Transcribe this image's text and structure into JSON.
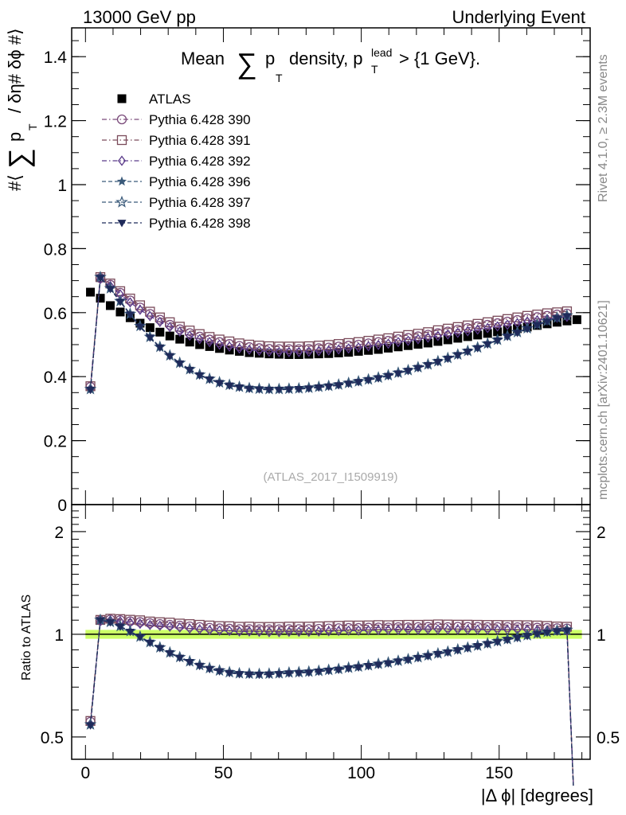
{
  "header": {
    "left": "13000 GeV pp",
    "right": "Underlying Event"
  },
  "side_labels": {
    "rivet": "Rivet 4.1.0, ≥ 2.3M events",
    "mcplots": "mcplots.cern.ch [arXiv:2401.10621]"
  },
  "watermark": "(ATLAS_2017_I1509919)",
  "chart_data": [
    {
      "type": "scatter",
      "panel": "main",
      "title": "Mean ∑ p_T density, p_T^lead > {1 GeV}.",
      "title_parts": {
        "prefix": "Mean",
        "sum": "∑",
        "p": "p",
        "sub_T": "T",
        "mid": "density, p",
        "sup_lead": "lead",
        "suffix": "> {1 GeV}."
      },
      "ylabel": "#⟨ ∑ p_T / δη# δϕ #⟩",
      "ylabel_parts": {
        "open": "#⟨",
        "sum": "∑",
        "p": "p",
        "sub_T": "T",
        "rest": "/ δη# δϕ #⟩"
      },
      "xlim": [
        -5,
        183
      ],
      "ylim": [
        0,
        1.49
      ],
      "yticks": [
        0,
        0.2,
        0.4,
        0.6,
        0.8,
        1,
        1.2,
        1.4
      ],
      "ytick_labels": [
        "0",
        "0.2",
        "0.4",
        "0.6",
        "0.8",
        "1",
        "1.2",
        "1.4"
      ],
      "legend": [
        {
          "label": "ATLAS",
          "marker": "square-filled",
          "color": "#000000",
          "line": "none"
        },
        {
          "label": "Pythia 6.428 390",
          "marker": "circle-open",
          "color": "#7a4a7a",
          "line": "dashdot"
        },
        {
          "label": "Pythia 6.428 391",
          "marker": "square-open",
          "color": "#7a4a5a",
          "line": "dashdot"
        },
        {
          "label": "Pythia 6.428 392",
          "marker": "diamond-open",
          "color": "#5a3a8a",
          "line": "dashdot"
        },
        {
          "label": "Pythia 6.428 396",
          "marker": "star-filled",
          "color": "#3a5a7a",
          "line": "dashed"
        },
        {
          "label": "Pythia 6.428 397",
          "marker": "star-open",
          "color": "#3a5a7a",
          "line": "dashed"
        },
        {
          "label": "Pythia 6.428 398",
          "marker": "triangle-down-filled",
          "color": "#1f2a5a",
          "line": "dashed"
        }
      ],
      "legend_position": "top-left",
      "x": [
        1.8,
        5.4,
        9,
        12.6,
        16.2,
        19.8,
        23.4,
        27,
        30.6,
        34.2,
        37.8,
        41.4,
        45,
        48.6,
        52.2,
        55.8,
        59.4,
        63,
        66.6,
        70.2,
        73.8,
        77.4,
        81,
        84.6,
        88.2,
        91.8,
        95.4,
        99,
        102.6,
        106.2,
        109.8,
        113.4,
        117,
        120.6,
        124.2,
        127.8,
        131.4,
        135,
        138.6,
        142.2,
        145.8,
        149.4,
        153,
        156.6,
        160.2,
        163.8,
        167.4,
        171,
        174.6,
        178.2
      ],
      "series": [
        {
          "name": "ATLAS",
          "values": [
            0.664,
            0.645,
            0.622,
            0.602,
            0.584,
            0.567,
            0.553,
            0.539,
            0.527,
            0.517,
            0.508,
            0.5,
            0.494,
            0.488,
            0.483,
            0.479,
            0.475,
            0.473,
            0.471,
            0.47,
            0.469,
            0.469,
            0.47,
            0.471,
            0.472,
            0.474,
            0.476,
            0.479,
            0.482,
            0.485,
            0.489,
            0.493,
            0.497,
            0.501,
            0.505,
            0.51,
            0.515,
            0.52,
            0.525,
            0.53,
            0.535,
            0.54,
            0.545,
            0.55,
            0.555,
            0.56,
            0.565,
            0.57,
            0.574,
            0.578
          ]
        },
        {
          "name": "Pythia 6.428 390",
          "values": [
            0.368,
            0.708,
            0.687,
            0.662,
            0.638,
            0.616,
            0.596,
            0.578,
            0.562,
            0.548,
            0.536,
            0.525,
            0.516,
            0.508,
            0.502,
            0.496,
            0.492,
            0.489,
            0.487,
            0.486,
            0.486,
            0.486,
            0.487,
            0.489,
            0.491,
            0.494,
            0.497,
            0.5,
            0.504,
            0.508,
            0.512,
            0.517,
            0.521,
            0.526,
            0.531,
            0.536,
            0.541,
            0.547,
            0.552,
            0.557,
            0.562,
            0.567,
            0.572,
            0.577,
            0.582,
            0.586,
            0.59,
            0.594,
            0.597,
            null
          ]
        },
        {
          "name": "Pythia 6.428 391",
          "values": [
            0.37,
            0.711,
            0.691,
            0.667,
            0.644,
            0.623,
            0.603,
            0.585,
            0.57,
            0.556,
            0.544,
            0.533,
            0.524,
            0.516,
            0.51,
            0.504,
            0.5,
            0.497,
            0.495,
            0.494,
            0.494,
            0.494,
            0.495,
            0.497,
            0.499,
            0.502,
            0.505,
            0.508,
            0.512,
            0.516,
            0.52,
            0.525,
            0.53,
            0.534,
            0.539,
            0.545,
            0.55,
            0.555,
            0.56,
            0.565,
            0.57,
            0.575,
            0.58,
            0.585,
            0.59,
            0.594,
            0.598,
            0.601,
            0.604,
            null
          ]
        },
        {
          "name": "Pythia 6.428 392",
          "values": [
            0.362,
            0.705,
            0.683,
            0.657,
            0.632,
            0.609,
            0.589,
            0.571,
            0.555,
            0.541,
            0.528,
            0.517,
            0.508,
            0.5,
            0.494,
            0.488,
            0.484,
            0.481,
            0.478,
            0.477,
            0.477,
            0.477,
            0.478,
            0.48,
            0.482,
            0.485,
            0.488,
            0.491,
            0.495,
            0.499,
            0.503,
            0.508,
            0.512,
            0.517,
            0.522,
            0.527,
            0.532,
            0.537,
            0.542,
            0.547,
            0.552,
            0.557,
            0.562,
            0.567,
            0.572,
            0.576,
            0.58,
            0.584,
            0.587,
            null
          ]
        },
        {
          "name": "Pythia 6.428 396",
          "values": [
            0.36,
            0.71,
            0.675,
            0.635,
            0.595,
            0.557,
            0.523,
            0.492,
            0.465,
            0.442,
            0.422,
            0.405,
            0.392,
            0.381,
            0.373,
            0.367,
            0.363,
            0.361,
            0.36,
            0.36,
            0.361,
            0.362,
            0.364,
            0.367,
            0.37,
            0.374,
            0.379,
            0.384,
            0.39,
            0.396,
            0.403,
            0.411,
            0.419,
            0.428,
            0.437,
            0.447,
            0.457,
            0.468,
            0.479,
            0.49,
            0.502,
            0.514,
            0.526,
            0.538,
            0.55,
            0.562,
            0.573,
            0.583,
            0.59,
            null
          ]
        },
        {
          "name": "Pythia 6.428 397",
          "values": [
            0.361,
            0.711,
            0.676,
            0.636,
            0.596,
            0.558,
            0.524,
            0.493,
            0.466,
            0.443,
            0.423,
            0.406,
            0.393,
            0.382,
            0.374,
            0.368,
            0.364,
            0.362,
            0.361,
            0.361,
            0.362,
            0.363,
            0.365,
            0.368,
            0.371,
            0.375,
            0.38,
            0.385,
            0.391,
            0.397,
            0.404,
            0.412,
            0.42,
            0.429,
            0.438,
            0.448,
            0.458,
            0.469,
            0.48,
            0.491,
            0.503,
            0.515,
            0.527,
            0.539,
            0.551,
            0.563,
            0.574,
            0.584,
            0.591,
            null
          ]
        },
        {
          "name": "Pythia 6.428 398",
          "values": [
            0.359,
            0.709,
            0.674,
            0.634,
            0.594,
            0.556,
            0.522,
            0.491,
            0.464,
            0.441,
            0.421,
            0.404,
            0.391,
            0.38,
            0.372,
            0.366,
            0.362,
            0.36,
            0.359,
            0.359,
            0.36,
            0.361,
            0.363,
            0.366,
            0.369,
            0.373,
            0.378,
            0.383,
            0.389,
            0.395,
            0.402,
            0.41,
            0.418,
            0.427,
            0.436,
            0.446,
            0.456,
            0.467,
            0.478,
            0.489,
            0.501,
            0.513,
            0.525,
            0.537,
            0.549,
            0.561,
            0.572,
            0.582,
            0.589,
            null
          ]
        }
      ]
    },
    {
      "type": "scatter",
      "panel": "ratio",
      "ylabel": "Ratio to ATLAS",
      "xlabel": "|Δ ϕ| [degrees]",
      "xlim": [
        -5,
        183
      ],
      "ylim": [
        0.43,
        2.4
      ],
      "yscale": "log",
      "yticks": [
        0.5,
        1,
        2
      ],
      "ytick_labels": [
        "0.5",
        "1",
        "2"
      ],
      "xticks": [
        0,
        50,
        100,
        150
      ],
      "xtick_labels": [
        "0",
        "50",
        "100",
        "150"
      ],
      "reference_band": {
        "center": 1.0,
        "low": 0.97,
        "high": 1.03,
        "color": "#ccff66"
      },
      "last_point_drop_to": 0.36,
      "x": [
        1.8,
        5.4,
        9,
        12.6,
        16.2,
        19.8,
        23.4,
        27,
        30.6,
        34.2,
        37.8,
        41.4,
        45,
        48.6,
        52.2,
        55.8,
        59.4,
        63,
        66.6,
        70.2,
        73.8,
        77.4,
        81,
        84.6,
        88.2,
        91.8,
        95.4,
        99,
        102.6,
        106.2,
        109.8,
        113.4,
        117,
        120.6,
        124.2,
        127.8,
        131.4,
        135,
        138.6,
        142.2,
        145.8,
        149.4,
        153,
        156.6,
        160.2,
        163.8,
        167.4,
        171,
        174.6
      ],
      "series": [
        {
          "name": "Pythia 6.428 390",
          "values": [
            0.554,
            1.098,
            1.105,
            1.1,
            1.092,
            1.086,
            1.078,
            1.072,
            1.066,
            1.06,
            1.055,
            1.05,
            1.045,
            1.041,
            1.039,
            1.035,
            1.036,
            1.034,
            1.034,
            1.034,
            1.036,
            1.036,
            1.036,
            1.038,
            1.04,
            1.042,
            1.044,
            1.044,
            1.046,
            1.047,
            1.047,
            1.049,
            1.048,
            1.05,
            1.051,
            1.051,
            1.05,
            1.052,
            1.051,
            1.051,
            1.05,
            1.05,
            1.05,
            1.049,
            1.049,
            1.046,
            1.044,
            1.042,
            1.04
          ]
        },
        {
          "name": "Pythia 6.428 391",
          "values": [
            0.557,
            1.102,
            1.111,
            1.108,
            1.103,
            1.099,
            1.09,
            1.085,
            1.082,
            1.075,
            1.071,
            1.066,
            1.061,
            1.057,
            1.056,
            1.052,
            1.053,
            1.051,
            1.051,
            1.051,
            1.053,
            1.053,
            1.053,
            1.055,
            1.057,
            1.059,
            1.061,
            1.061,
            1.062,
            1.064,
            1.063,
            1.065,
            1.066,
            1.066,
            1.067,
            1.069,
            1.068,
            1.067,
            1.067,
            1.066,
            1.065,
            1.065,
            1.064,
            1.064,
            1.063,
            1.061,
            1.058,
            1.054,
            1.052
          ]
        },
        {
          "name": "Pythia 6.428 392",
          "values": [
            0.545,
            1.093,
            1.098,
            1.091,
            1.082,
            1.074,
            1.065,
            1.059,
            1.053,
            1.046,
            1.039,
            1.034,
            1.028,
            1.025,
            1.023,
            1.019,
            1.019,
            1.017,
            1.015,
            1.015,
            1.017,
            1.017,
            1.017,
            1.019,
            1.021,
            1.023,
            1.025,
            1.025,
            1.027,
            1.029,
            1.029,
            1.03,
            1.03,
            1.032,
            1.034,
            1.033,
            1.033,
            1.033,
            1.032,
            1.032,
            1.032,
            1.031,
            1.031,
            1.031,
            1.031,
            1.029,
            1.027,
            1.025,
            1.023
          ]
        },
        {
          "name": "Pythia 6.428 396",
          "values": [
            0.542,
            1.101,
            1.085,
            1.055,
            1.019,
            0.982,
            0.946,
            0.913,
            0.882,
            0.855,
            0.831,
            0.81,
            0.794,
            0.781,
            0.772,
            0.766,
            0.764,
            0.763,
            0.764,
            0.766,
            0.77,
            0.772,
            0.774,
            0.779,
            0.784,
            0.789,
            0.796,
            0.802,
            0.809,
            0.816,
            0.824,
            0.834,
            0.843,
            0.854,
            0.865,
            0.876,
            0.887,
            0.9,
            0.912,
            0.925,
            0.938,
            0.952,
            0.965,
            0.978,
            0.991,
            1.004,
            1.014,
            1.023,
            1.028
          ]
        },
        {
          "name": "Pythia 6.428 397",
          "values": [
            0.544,
            1.102,
            1.087,
            1.056,
            1.021,
            0.984,
            0.948,
            0.915,
            0.884,
            0.857,
            0.833,
            0.812,
            0.796,
            0.783,
            0.774,
            0.768,
            0.766,
            0.765,
            0.766,
            0.768,
            0.772,
            0.774,
            0.777,
            0.781,
            0.786,
            0.791,
            0.798,
            0.804,
            0.811,
            0.819,
            0.826,
            0.836,
            0.845,
            0.856,
            0.867,
            0.878,
            0.889,
            0.902,
            0.914,
            0.926,
            0.94,
            0.954,
            0.967,
            0.98,
            0.993,
            1.005,
            1.016,
            1.025,
            1.03
          ]
        },
        {
          "name": "Pythia 6.428 398",
          "values": [
            0.541,
            1.099,
            1.084,
            1.053,
            1.017,
            0.981,
            0.944,
            0.911,
            0.88,
            0.853,
            0.829,
            0.808,
            0.791,
            0.779,
            0.77,
            0.764,
            0.762,
            0.761,
            0.762,
            0.764,
            0.768,
            0.77,
            0.772,
            0.777,
            0.782,
            0.787,
            0.794,
            0.8,
            0.807,
            0.814,
            0.822,
            0.832,
            0.841,
            0.852,
            0.863,
            0.875,
            0.885,
            0.898,
            0.91,
            0.923,
            0.936,
            0.95,
            0.963,
            0.976,
            0.989,
            1.002,
            1.012,
            1.021,
            1.026
          ]
        }
      ]
    }
  ]
}
